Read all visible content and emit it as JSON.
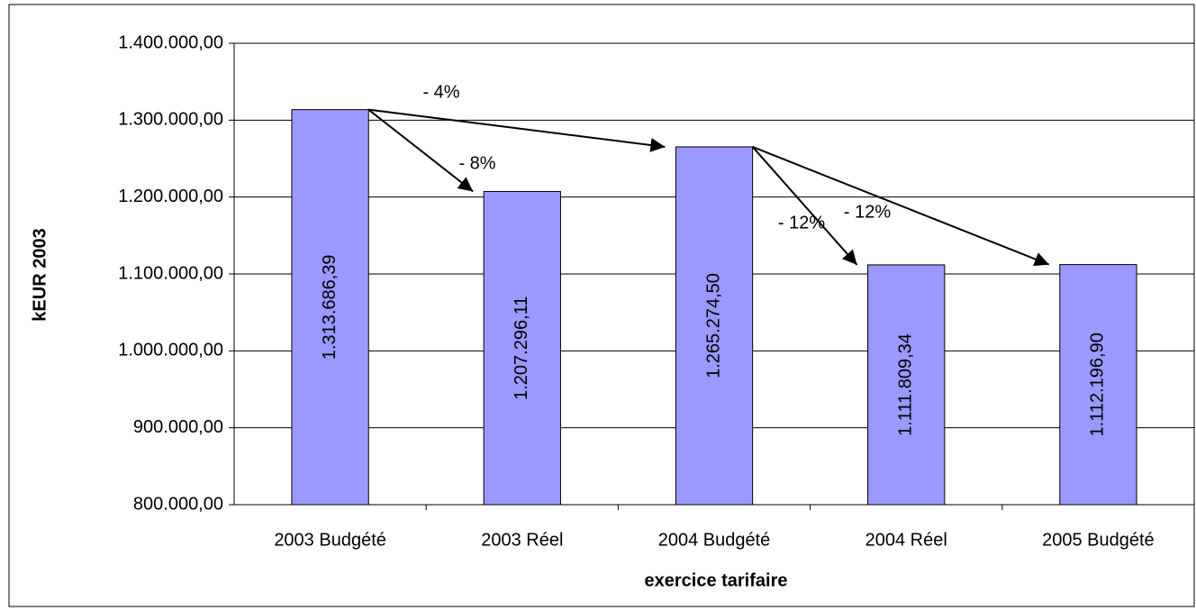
{
  "chart_data": {
    "type": "bar",
    "ylabel": "kEUR 2003",
    "xlabel": "exercice tarifaire",
    "categories": [
      "2003 Budgété",
      "2003 Réel",
      "2004 Budgété",
      "2004 Réel",
      "2005 Budgété"
    ],
    "values": [
      1313686.39,
      1207296.11,
      1265274.5,
      1111809.34,
      1112196.9
    ],
    "value_labels": [
      "1.313.686,39",
      "1.207.296,11",
      "1.265.274,50",
      "1.111.809,34",
      "1.112.196,90"
    ],
    "color": "#9999ff",
    "ylim": [
      800000,
      1400000
    ],
    "yticks": [
      {
        "value": 800000,
        "label": "800.000,00"
      },
      {
        "value": 900000,
        "label": "900.000,00"
      },
      {
        "value": 1000000,
        "label": "1.000.000,00"
      },
      {
        "value": 1100000,
        "label": "1.100.000,00"
      },
      {
        "value": 1200000,
        "label": "1.200.000,00"
      },
      {
        "value": 1300000,
        "label": "1.300.000,00"
      },
      {
        "value": 1400000,
        "label": "1.400.000,00"
      }
    ],
    "grid": true,
    "annotations": [
      "- 4%",
      "- 8%",
      "- 12%",
      "- 12%"
    ]
  }
}
